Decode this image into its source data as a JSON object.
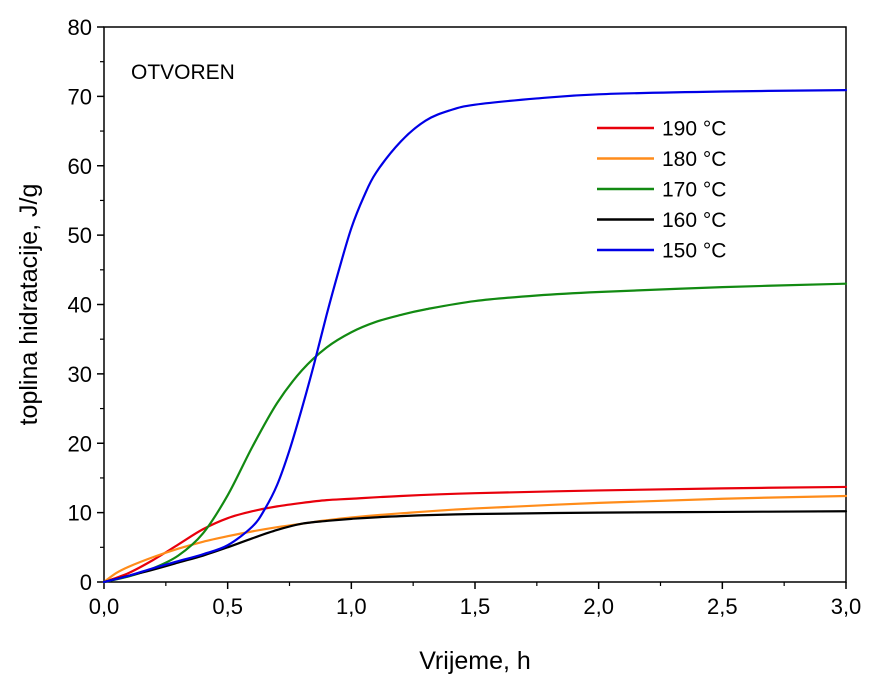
{
  "chart_data": {
    "type": "line",
    "title": "",
    "annotation": "OTVOREN",
    "xlabel": "Vrijeme, h",
    "ylabel": "toplina hidratacije, J/g",
    "xlim": [
      0,
      3.0
    ],
    "ylim": [
      0,
      80
    ],
    "x_ticks": [
      "0,0",
      "0,5",
      "1,0",
      "1,5",
      "2,0",
      "2,5",
      "3,0"
    ],
    "x_tick_values": [
      0,
      0.5,
      1.0,
      1.5,
      2.0,
      2.5,
      3.0
    ],
    "y_ticks": [
      "0",
      "10",
      "20",
      "30",
      "40",
      "50",
      "60",
      "70",
      "80"
    ],
    "y_tick_values": [
      0,
      10,
      20,
      30,
      40,
      50,
      60,
      70,
      80
    ],
    "grid": false,
    "legend_position": "top-right",
    "series": [
      {
        "name": "190 °C",
        "color": "#e8000b",
        "x": [
          0,
          0.1,
          0.2,
          0.3,
          0.4,
          0.5,
          0.6,
          0.7,
          0.8,
          0.9,
          1.0,
          1.2,
          1.5,
          2.0,
          2.5,
          3.0
        ],
        "y": [
          0,
          1.3,
          3.2,
          5.4,
          7.6,
          9.2,
          10.2,
          10.9,
          11.4,
          11.8,
          12.0,
          12.4,
          12.8,
          13.2,
          13.5,
          13.7
        ]
      },
      {
        "name": "180 °C",
        "color": "#ff8c1a",
        "x": [
          0,
          0.05,
          0.1,
          0.2,
          0.3,
          0.4,
          0.5,
          0.6,
          0.7,
          0.8,
          0.9,
          1.0,
          1.2,
          1.5,
          2.0,
          2.5,
          3.0
        ],
        "y": [
          0,
          1.3,
          2.2,
          3.6,
          4.8,
          5.8,
          6.6,
          7.3,
          7.9,
          8.4,
          8.9,
          9.3,
          9.9,
          10.6,
          11.4,
          12.0,
          12.4
        ]
      },
      {
        "name": "170 °C",
        "color": "#128a12",
        "x": [
          0,
          0.1,
          0.2,
          0.3,
          0.4,
          0.5,
          0.6,
          0.7,
          0.8,
          0.9,
          1.0,
          1.1,
          1.2,
          1.3,
          1.5,
          1.75,
          2.0,
          2.5,
          3.0
        ],
        "y": [
          0,
          0.8,
          2.0,
          3.8,
          7.0,
          12.5,
          19.5,
          25.8,
          30.5,
          33.8,
          36.0,
          37.5,
          38.5,
          39.3,
          40.5,
          41.3,
          41.8,
          42.5,
          43.0
        ]
      },
      {
        "name": "160 °C",
        "color": "#000000",
        "x": [
          0,
          0.1,
          0.2,
          0.3,
          0.4,
          0.5,
          0.6,
          0.7,
          0.8,
          0.9,
          1.0,
          1.2,
          1.5,
          2.0,
          2.5,
          3.0
        ],
        "y": [
          0,
          0.9,
          1.8,
          2.8,
          3.8,
          5.0,
          6.3,
          7.5,
          8.4,
          8.8,
          9.1,
          9.5,
          9.8,
          10.0,
          10.1,
          10.2
        ]
      },
      {
        "name": "150 °C",
        "color": "#0000e6",
        "x": [
          0,
          0.1,
          0.2,
          0.3,
          0.4,
          0.5,
          0.6,
          0.65,
          0.7,
          0.75,
          0.8,
          0.85,
          0.9,
          0.95,
          1.0,
          1.05,
          1.1,
          1.2,
          1.3,
          1.4,
          1.5,
          1.75,
          2.0,
          2.5,
          3.0
        ],
        "y": [
          0,
          0.9,
          2.0,
          3.0,
          4.0,
          5.3,
          8.0,
          10.5,
          14.0,
          19.0,
          25.0,
          31.5,
          38.5,
          45.0,
          51.0,
          55.5,
          59.0,
          63.5,
          66.5,
          68.0,
          68.8,
          69.7,
          70.3,
          70.7,
          70.9
        ]
      }
    ]
  }
}
